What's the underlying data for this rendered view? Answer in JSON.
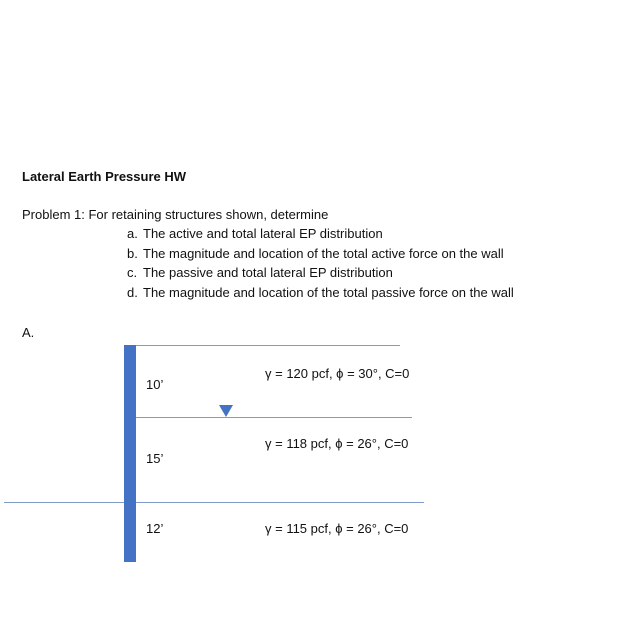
{
  "title": "Lateral Earth Pressure HW",
  "problem": "Problem 1: For retaining structures shown, determine",
  "items": [
    {
      "letter": "a.",
      "text": "The active and total lateral EP distribution"
    },
    {
      "letter": "b.",
      "text": "The magnitude and location of the total active force on the wall"
    },
    {
      "letter": "c.",
      "text": "The passive and total lateral EP distribution"
    },
    {
      "letter": "d.",
      "text": "The magnitude and location of the total passive force on the wall"
    }
  ],
  "part_label": "A.",
  "layers": [
    {
      "thickness": "10’",
      "props": "γ = 120 pcf, ϕ = 30°, C=0"
    },
    {
      "thickness": "15’",
      "props": "γ = 118 pcf, ϕ = 26°, C=0"
    },
    {
      "thickness": "12’",
      "props": "γ = 115 pcf, ϕ = 26°, C=0"
    }
  ],
  "colors": {
    "wall": "#4472c4",
    "lines": "#7f9cc9"
  }
}
